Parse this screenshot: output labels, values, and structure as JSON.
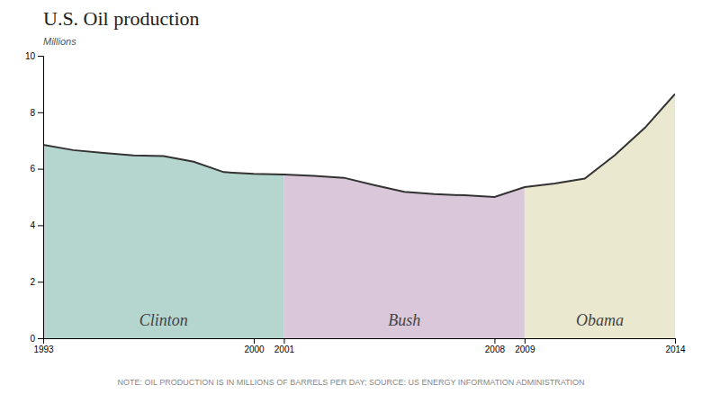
{
  "chart_data": {
    "type": "area",
    "title": "U.S. Oil production",
    "subtitle": "Millions",
    "annotations": [
      "NOTE: OIL PRODUCTION IS IN MILLIONS OF BARRELS PER DAY; SOURCE: US ENERGY INFORMATION ADMINISTRATION"
    ],
    "xlim": [
      1993,
      2014
    ],
    "xticks": [
      1993,
      2000,
      2001,
      2008,
      2009,
      2014
    ],
    "ylim": [
      0,
      10
    ],
    "yticks": [
      0,
      2,
      4,
      6,
      8,
      10
    ],
    "series": [
      {
        "name": "Clinton",
        "type": "area",
        "color": "#a8cfc7",
        "x": [
          1993,
          1994,
          1995,
          1996,
          1997,
          1998,
          1999,
          2000,
          2001
        ],
        "values": [
          6.85,
          6.66,
          6.56,
          6.47,
          6.45,
          6.25,
          5.88,
          5.82,
          5.8
        ]
      },
      {
        "name": "Bush",
        "type": "area",
        "color": "#d4bdd4",
        "x": [
          2001,
          2002,
          2003,
          2004,
          2005,
          2006,
          2007,
          2008,
          2009
        ],
        "values": [
          5.8,
          5.75,
          5.68,
          5.42,
          5.18,
          5.1,
          5.06,
          5.0,
          5.35
        ]
      },
      {
        "name": "Obama",
        "type": "area",
        "color": "#e8e4c8",
        "x": [
          2009,
          2010,
          2011,
          2012,
          2013,
          2014
        ],
        "values": [
          5.35,
          5.48,
          5.65,
          6.48,
          7.45,
          8.65
        ]
      },
      {
        "type": "line",
        "color": "#333333",
        "x": [
          1993,
          1994,
          1995,
          1996,
          1997,
          1998,
          1999,
          2000,
          2001,
          2002,
          2003,
          2004,
          2005,
          2006,
          2007,
          2008,
          2009,
          2010,
          2011,
          2012,
          2013,
          2014
        ],
        "values": [
          6.85,
          6.66,
          6.56,
          6.47,
          6.45,
          6.25,
          5.88,
          5.82,
          5.8,
          5.75,
          5.68,
          5.42,
          5.18,
          5.1,
          5.06,
          5.0,
          5.35,
          5.48,
          5.65,
          6.48,
          7.45,
          8.65
        ]
      }
    ]
  }
}
